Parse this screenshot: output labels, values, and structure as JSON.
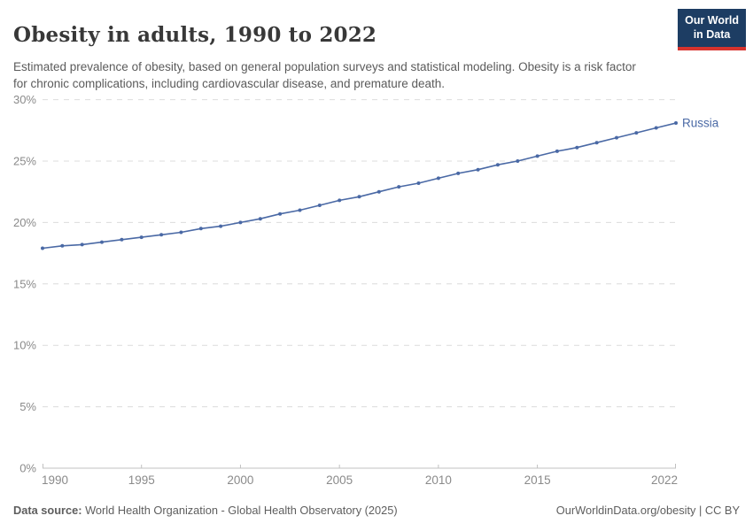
{
  "header": {
    "title": "Obesity in adults, 1990 to 2022",
    "subtitle": "Estimated prevalence of obesity, based on general population surveys and statistical modeling. Obesity is a risk factor for chronic complications, including cardiovascular disease, and premature death."
  },
  "logo": {
    "line1": "Our World",
    "line2": "in Data",
    "bg_color": "#1d3d63",
    "stripe_color": "#d7332d"
  },
  "chart_data": {
    "type": "line",
    "title": "Obesity in adults, 1990 to 2022",
    "xlabel": "",
    "ylabel": "",
    "x": [
      1990,
      1991,
      1992,
      1993,
      1994,
      1995,
      1996,
      1997,
      1998,
      1999,
      2000,
      2001,
      2002,
      2003,
      2004,
      2005,
      2006,
      2007,
      2008,
      2009,
      2010,
      2011,
      2012,
      2013,
      2014,
      2015,
      2016,
      2017,
      2018,
      2019,
      2020,
      2021,
      2022
    ],
    "series": [
      {
        "name": "Russia",
        "color": "#4a69a5",
        "values": [
          17.9,
          18.1,
          18.2,
          18.4,
          18.6,
          18.8,
          19.0,
          19.2,
          19.5,
          19.7,
          20.0,
          20.3,
          20.7,
          21.0,
          21.4,
          21.8,
          22.1,
          22.5,
          22.9,
          23.2,
          23.6,
          24.0,
          24.3,
          24.7,
          25.0,
          25.4,
          25.8,
          26.1,
          26.5,
          26.9,
          27.3,
          27.7,
          28.1
        ]
      }
    ],
    "ylim": [
      0,
      30
    ],
    "yticks": [
      0,
      5,
      10,
      15,
      20,
      25,
      30
    ],
    "ytick_suffix": "%",
    "xticks": [
      1990,
      1995,
      2000,
      2005,
      2010,
      2015,
      2022
    ],
    "grid": "horizontal-dashed",
    "legend_position": "end-of-line-label",
    "grid_color": "#dcdcdc",
    "axis_color": "#c0c0c0",
    "tick_label_color": "#8a8a8a"
  },
  "footer": {
    "source_label": "Data source:",
    "source_text": " World Health Organization - Global Health Observatory (2025)",
    "rights": "OurWorldinData.org/obesity | CC BY"
  }
}
